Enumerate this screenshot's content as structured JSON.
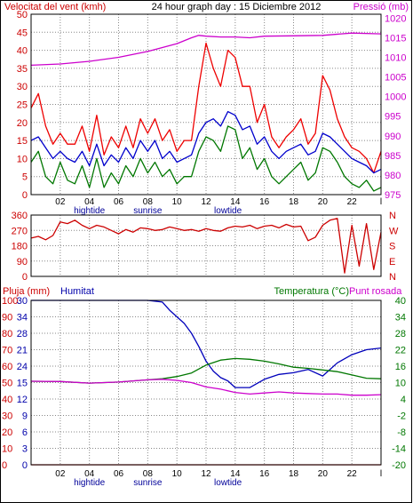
{
  "chart_data": [
    {
      "type": "line",
      "title": "24 hour graph day : 15 Diciembre 2012",
      "y_left_label": "Velocitat del vent (kmh)",
      "y_right_label": "Pressió (mb)",
      "x_ticks": [
        "02",
        "04",
        "06",
        "08",
        "10",
        "12",
        "14",
        "16",
        "18",
        "20",
        "22",
        "l"
      ],
      "x_annotations": [
        "hightide",
        "sunrise",
        "lowtide"
      ],
      "y_left_ticks": [
        "50",
        "45",
        "40",
        "35",
        "30",
        "25",
        "20",
        "15",
        "10",
        "5",
        "0"
      ],
      "y_right_ticks": [
        "1020",
        "1015",
        "1010",
        "1005",
        "1000",
        "995",
        "990",
        "985",
        "980",
        "975"
      ],
      "ylim_left": [
        0,
        50
      ],
      "ylim_right": [
        975,
        1021
      ],
      "grid": true,
      "series": [
        {
          "color": "#cc00cc",
          "axis": "right",
          "x": [
            0,
            2,
            4,
            6,
            8,
            9,
            10,
            11,
            11.5,
            12,
            13,
            14,
            15,
            16,
            18,
            20,
            22,
            24
          ],
          "values": [
            1008,
            1008.3,
            1009,
            1010,
            1011.5,
            1012.5,
            1013.5,
            1015,
            1015.6,
            1015.4,
            1015.2,
            1015.2,
            1015,
            1015.4,
            1015.5,
            1015.6,
            1016.2,
            1016
          ]
        },
        {
          "color": "#ee0000",
          "axis": "left",
          "x": [
            0,
            0.5,
            1,
            1.5,
            2,
            2.5,
            3,
            3.5,
            4,
            4.5,
            5,
            5.5,
            6,
            6.5,
            7,
            7.5,
            8,
            8.5,
            9,
            9.5,
            10,
            10.5,
            11,
            11.5,
            12,
            12.5,
            13,
            13.5,
            14,
            14.5,
            15,
            15.5,
            16,
            16.5,
            17,
            17.5,
            18,
            18.5,
            19,
            19.5,
            20,
            20.5,
            21,
            21.5,
            22,
            22.5,
            23,
            23.5,
            24
          ],
          "values": [
            24,
            28,
            19,
            14,
            17,
            14,
            14,
            19,
            12,
            22,
            11,
            16,
            13,
            19,
            13,
            21,
            17,
            21,
            15,
            18,
            12,
            15,
            15,
            30,
            42,
            35,
            30,
            40,
            38,
            30,
            30,
            20,
            25,
            16,
            13,
            16,
            18,
            21,
            14,
            17,
            33,
            29,
            21,
            16,
            13,
            12,
            10,
            6,
            12
          ]
        },
        {
          "color": "#0000cc",
          "axis": "left",
          "x": [
            0,
            0.5,
            1,
            1.5,
            2,
            2.5,
            3,
            3.5,
            4,
            4.5,
            5,
            5.5,
            6,
            6.5,
            7,
            7.5,
            8,
            8.5,
            9,
            9.5,
            10,
            10.5,
            11,
            11.5,
            12,
            12.5,
            13,
            13.5,
            14,
            14.5,
            15,
            15.5,
            16,
            16.5,
            17,
            17.5,
            18,
            18.5,
            19,
            19.5,
            20,
            20.5,
            21,
            21.5,
            22,
            22.5,
            23,
            23.5,
            24
          ],
          "values": [
            15,
            16,
            13,
            10,
            12,
            10,
            9,
            12,
            8,
            14,
            8,
            11,
            9,
            13,
            10,
            15,
            12,
            15,
            10,
            12,
            9,
            10,
            11,
            17,
            20,
            21,
            19,
            23,
            22,
            18,
            19,
            14,
            16,
            12,
            10,
            12,
            13,
            14,
            11,
            12,
            17,
            16,
            14,
            12,
            10,
            9,
            8,
            6,
            7
          ]
        },
        {
          "color": "#007700",
          "axis": "left",
          "x": [
            0,
            0.5,
            1,
            1.5,
            2,
            2.5,
            3,
            3.5,
            4,
            4.5,
            5,
            5.5,
            6,
            6.5,
            7,
            7.5,
            8,
            8.5,
            9,
            9.5,
            10,
            10.5,
            11,
            11.5,
            12,
            12.5,
            13,
            13.5,
            14,
            14.5,
            15,
            15.5,
            16,
            16.5,
            17,
            17.5,
            18,
            18.5,
            19,
            19.5,
            20,
            20.5,
            21,
            21.5,
            22,
            22.5,
            23,
            23.5,
            24
          ],
          "values": [
            9,
            12,
            5,
            3,
            9,
            4,
            3,
            8,
            2,
            10,
            2,
            6,
            3,
            8,
            5,
            10,
            6,
            9,
            5,
            7,
            3,
            5,
            5,
            12,
            16,
            15,
            12,
            19,
            18,
            10,
            13,
            7,
            10,
            5,
            3,
            5,
            7,
            9,
            4,
            6,
            13,
            12,
            9,
            5,
            3,
            2,
            4,
            1,
            2
          ]
        }
      ]
    },
    {
      "type": "line",
      "y_left_ticks": [
        "360",
        "270",
        "180",
        "90",
        "0"
      ],
      "y_right_ticks": [
        "N",
        "W",
        "S",
        "E",
        "N"
      ],
      "ylim": [
        0,
        360
      ],
      "grid": true,
      "series": [
        {
          "color": "#cc0000",
          "x": [
            0,
            0.5,
            1,
            1.5,
            2,
            2.5,
            3,
            3.5,
            4,
            4.5,
            5,
            5.5,
            6,
            6.5,
            7,
            7.5,
            8,
            8.5,
            9,
            9.5,
            10,
            10.5,
            11,
            11.5,
            12,
            12.5,
            13,
            13.5,
            14,
            14.5,
            15,
            15.5,
            16,
            16.5,
            17,
            17.5,
            18,
            18.5,
            19,
            19.5,
            20,
            20.5,
            21,
            21.5,
            22,
            22.5,
            23,
            23.5,
            24
          ],
          "values": [
            225,
            235,
            215,
            240,
            320,
            310,
            330,
            300,
            280,
            300,
            290,
            270,
            250,
            275,
            260,
            285,
            280,
            270,
            275,
            290,
            280,
            270,
            275,
            265,
            280,
            270,
            265,
            285,
            295,
            290,
            300,
            280,
            295,
            300,
            285,
            305,
            290,
            295,
            210,
            230,
            300,
            330,
            340,
            20,
            300,
            60,
            310,
            40,
            260
          ]
        }
      ]
    },
    {
      "type": "line",
      "y_left_label": "Pluja (mm)",
      "y_left2_label": "Humitat",
      "y_right_label": "Temperatura (°C)",
      "y_right2_label": "Punt rosada",
      "x_ticks": [
        "02",
        "04",
        "06",
        "08",
        "10",
        "12",
        "14",
        "16",
        "18",
        "20",
        "22",
        "l"
      ],
      "x_annotations": [
        "hightide",
        "sunrise",
        "lowtide"
      ],
      "y_left_ticks": [
        "100",
        "90",
        "80",
        "70",
        "60",
        "50",
        "40",
        "30",
        "20",
        "10",
        "0"
      ],
      "y_left2_ticks": [
        "30",
        "34",
        "28",
        "21",
        "24",
        "15",
        "12",
        "9",
        "6",
        "3",
        "0"
      ],
      "y_right_ticks": [
        "40",
        "34",
        "28",
        "22",
        "16",
        "10",
        "4",
        "-2",
        "-8",
        "-14",
        "-20"
      ],
      "ylim_left": [
        0,
        100
      ],
      "ylim_right": [
        -20,
        40
      ],
      "grid": true,
      "series": [
        {
          "color": "#0000bb",
          "axis": "left",
          "x": [
            0,
            2,
            4,
            6,
            8,
            9,
            9.5,
            10,
            10.5,
            11,
            11.5,
            12,
            12.5,
            13,
            13.5,
            14,
            15,
            16,
            17,
            18,
            19,
            20,
            21,
            22,
            23,
            24
          ],
          "values": [
            100,
            100,
            100,
            100,
            100,
            99,
            94,
            90,
            86,
            80,
            72,
            63,
            57,
            53,
            51,
            47,
            47,
            52,
            55,
            56,
            58,
            54,
            62,
            67,
            70,
            71
          ]
        },
        {
          "color": "#007700",
          "axis": "right",
          "x": [
            0,
            2,
            4,
            6,
            8,
            9,
            10,
            11,
            12,
            13,
            14,
            15,
            16,
            17,
            18,
            19,
            20,
            21,
            22,
            23,
            24
          ],
          "values": [
            10.5,
            10.4,
            9.8,
            10.2,
            11.0,
            11.4,
            12.2,
            13.5,
            16.4,
            18.2,
            18.8,
            18.5,
            17.8,
            16.8,
            15.6,
            15.2,
            14.6,
            14.0,
            12.8,
            11.6,
            11.4
          ]
        },
        {
          "color": "#cc00cc",
          "axis": "right",
          "x": [
            0,
            2,
            4,
            6,
            8,
            9,
            10,
            11,
            12,
            13,
            14,
            15,
            16,
            17,
            18,
            19,
            20,
            21,
            22,
            23,
            24
          ],
          "values": [
            10.5,
            10.4,
            9.8,
            10.2,
            11.0,
            11.2,
            10.8,
            10.0,
            8.4,
            7.6,
            6.4,
            5.8,
            6.2,
            6.6,
            6.2,
            6.0,
            5.8,
            5.8,
            5.4,
            5.4,
            5.6
          ]
        },
        {
          "color": "#cc0000",
          "axis": "left",
          "x": [
            0,
            24
          ],
          "values": [
            0,
            0
          ]
        }
      ]
    }
  ]
}
